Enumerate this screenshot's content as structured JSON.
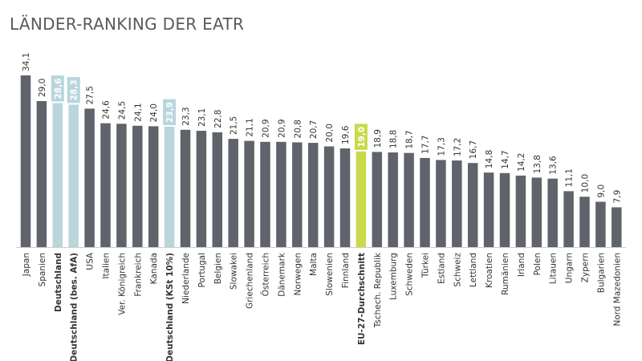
{
  "chart_data": {
    "type": "bar",
    "title": "LÄNDER-RANKING DER EATR",
    "xlabel": "",
    "ylabel": "",
    "ylim": [
      0,
      34.1
    ],
    "grid": false,
    "legend": "none",
    "colors": {
      "default": "#5f646b",
      "germany": "#b8d6dc",
      "eu_average": "#c9d94a"
    },
    "categories": [
      "Japan",
      "Spanien",
      "Deutschland",
      "Deutschland (bes. AfA)",
      "USA",
      "Italien",
      "Ver. Königreich",
      "Frankreich",
      "Kanada",
      "Deutschland (KSt 10%)",
      "Niederlande",
      "Portugal",
      "Belgien",
      "Slowakei",
      "Griechenland",
      "Österreich",
      "Dänemark",
      "Norwegen",
      "Malta",
      "Slowenien",
      "Finnland",
      "EU-27-Durchschnitt",
      "Tschech. Republik",
      "Luxemburg",
      "Schweden",
      "Türkei",
      "Estland",
      "Schweiz",
      "Lettland",
      "Kroatien",
      "Rumänien",
      "Irland",
      "Polen",
      "Litauen",
      "Ungarn",
      "Zypern",
      "Bulgarien",
      "Nord Mazedonien"
    ],
    "values": [
      34.1,
      29.0,
      28.6,
      28.3,
      27.5,
      24.6,
      24.5,
      24.1,
      24.0,
      23.9,
      23.3,
      23.1,
      22.8,
      21.5,
      21.1,
      20.9,
      20.9,
      20.8,
      20.7,
      20.0,
      19.6,
      19.0,
      18.9,
      18.8,
      18.7,
      17.7,
      17.3,
      17.2,
      16.7,
      14.8,
      14.7,
      14.2,
      13.8,
      13.6,
      11.1,
      10.0,
      9.0,
      7.9
    ],
    "value_labels": [
      "34,1",
      "29,0",
      "28,6",
      "28,3",
      "27,5",
      "24,6",
      "24,5",
      "24,1",
      "24,0",
      "23,9",
      "23,3",
      "23,1",
      "22,8",
      "21,5",
      "21,1",
      "20,9",
      "20,9",
      "20,8",
      "20,7",
      "20,0",
      "19,6",
      "19,0",
      "18,9",
      "18,8",
      "18,7",
      "17,7",
      "17,3",
      "17,2",
      "16,7",
      "14,8",
      "14,7",
      "14,2",
      "13,8",
      "13,6",
      "11,1",
      "10,0",
      "9,0",
      "7,9"
    ],
    "highlight": {
      "Deutschland": "germany",
      "Deutschland (bes. AfA)": "germany",
      "Deutschland (KSt 10%)": "germany",
      "EU-27-Durchschnitt": "eu_average"
    }
  }
}
